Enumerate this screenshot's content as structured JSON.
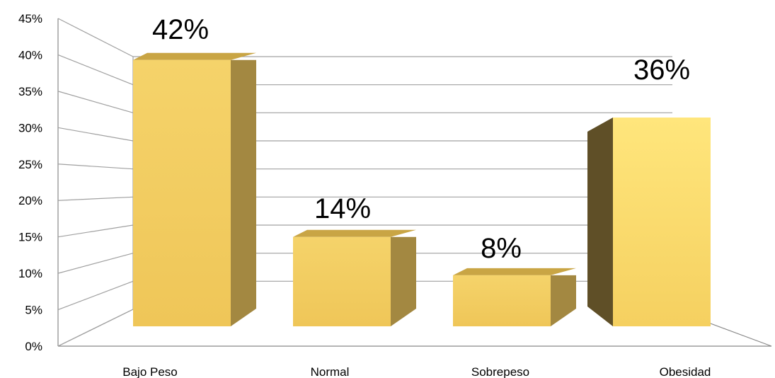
{
  "chart_data": {
    "type": "bar",
    "categories": [
      "Bajo Peso",
      "Normal",
      "Sobrepeso",
      "Obesidad"
    ],
    "values": [
      42,
      14,
      8,
      36
    ],
    "data_labels": [
      "42%",
      "14%",
      "8%",
      "36%"
    ],
    "ylim": [
      0,
      45
    ],
    "yticks": [
      0,
      5,
      10,
      15,
      20,
      25,
      30,
      35,
      40,
      45
    ],
    "ytick_labels": [
      "0%",
      "5%",
      "10%",
      "15%",
      "20%",
      "25%",
      "30%",
      "35%",
      "40%",
      "45%"
    ],
    "title": "",
    "xlabel": "",
    "ylabel": "",
    "grid": true,
    "legend": "none",
    "style": "3d-bar"
  },
  "colors": {
    "bar_front": "#F2CC5E",
    "bar_front_light": "#FFE57A",
    "bar_side_dark": "#A38841",
    "bar_side_darker": "#5F4F27",
    "bar_top": "#C9A544",
    "grid": "#A0A0A0",
    "axis": "#888888"
  }
}
